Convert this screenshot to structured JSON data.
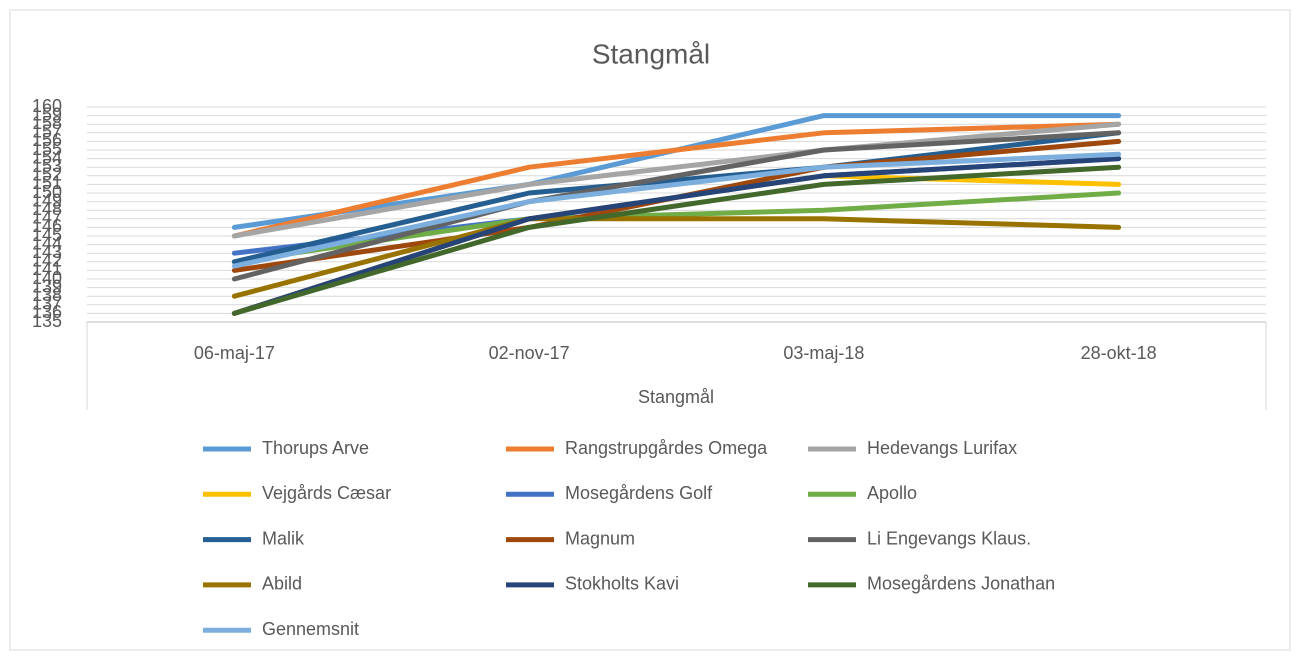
{
  "chart_data": {
    "type": "line",
    "title": "Stangmål",
    "x_label": "Stangmål",
    "categories": [
      "06-maj-17",
      "02-nov-17",
      "03-maj-18",
      "28-okt-18"
    ],
    "ylim": [
      135,
      160
    ],
    "yticks": [
      135,
      136,
      137,
      138,
      139,
      140,
      141,
      142,
      143,
      144,
      145,
      146,
      147,
      148,
      149,
      150,
      151,
      152,
      153,
      154,
      155,
      156,
      157,
      158,
      159,
      160
    ],
    "grid": true,
    "series": [
      {
        "name": "Thorups Arve",
        "color": "#5b9bd5",
        "values": [
          146,
          151,
          159,
          159
        ]
      },
      {
        "name": "Rangstrupgårdes Omega",
        "color": "#ed7d31",
        "values": [
          145,
          153,
          157,
          158
        ]
      },
      {
        "name": "Hedevangs Lurifax",
        "color": "#a5a5a5",
        "values": [
          145,
          151,
          155,
          158
        ]
      },
      {
        "name": "Vejgårds Cæsar",
        "color": "#ffc000",
        "values": [
          136,
          147,
          152,
          151
        ]
      },
      {
        "name": "Mosegårdens Golf",
        "color": "#4472c4",
        "values": [
          143,
          147,
          152,
          154
        ]
      },
      {
        "name": "Apollo",
        "color": "#70ad47",
        "values": [
          142,
          147,
          148,
          150
        ]
      },
      {
        "name": "Malik",
        "color": "#255e91",
        "values": [
          142,
          150,
          153,
          157
        ]
      },
      {
        "name": "Magnum",
        "color": "#9e480e",
        "values": [
          141,
          146,
          153,
          156
        ]
      },
      {
        "name": "Li Engevangs Klaus.",
        "color": "#636363",
        "values": [
          140,
          149,
          155,
          157
        ]
      },
      {
        "name": "Abild",
        "color": "#997300",
        "values": [
          138,
          147,
          147,
          146
        ]
      },
      {
        "name": "Stokholts Kavi",
        "color": "#264478",
        "values": [
          136,
          147,
          152,
          154
        ]
      },
      {
        "name": "Mosegårdens Jonathan",
        "color": "#43682b",
        "values": [
          136,
          146,
          151,
          153
        ]
      },
      {
        "name": "Gennemsnit",
        "color": "#7cafdd",
        "values": [
          141.5,
          149,
          153,
          154.5
        ]
      }
    ]
  }
}
